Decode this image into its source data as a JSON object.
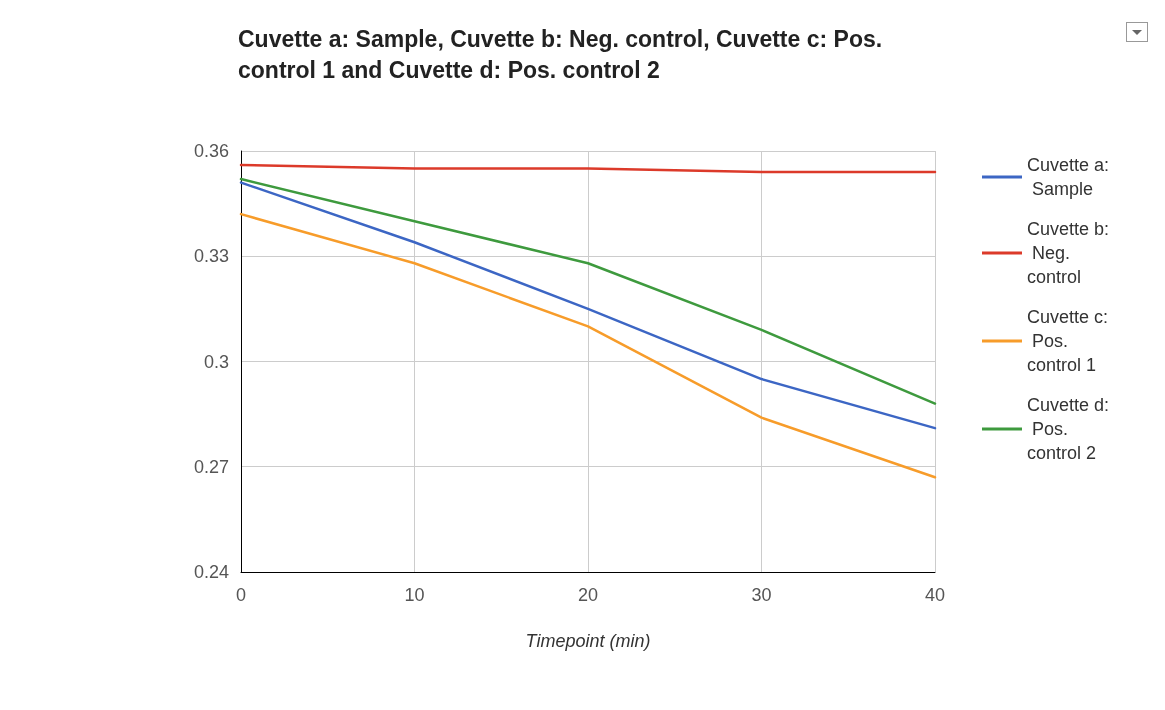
{
  "chart_data": {
    "type": "line",
    "title": "Cuvette a: Sample, Cuvette b: Neg. control, Cuvette c: Pos. control 1 and Cuvette d: Pos. control 2",
    "xlabel": "Timepoint (min)",
    "x": [
      0,
      10,
      20,
      30,
      40
    ],
    "series": [
      {
        "name": "Cuvette a: Sample",
        "color": "#3c66c4",
        "values": [
          0.351,
          0.334,
          0.315,
          0.295,
          0.281
        ]
      },
      {
        "name": "Cuvette b: Neg. control",
        "color": "#dc3a2a",
        "values": [
          0.356,
          0.355,
          0.355,
          0.354,
          0.354
        ]
      },
      {
        "name": "Cuvette c: Pos. control 1",
        "color": "#f79c2a",
        "values": [
          0.342,
          0.328,
          0.31,
          0.284,
          0.267
        ]
      },
      {
        "name": "Cuvette d: Pos. control 2",
        "color": "#3e9a3e",
        "values": [
          0.352,
          0.34,
          0.328,
          0.309,
          0.288
        ]
      }
    ],
    "xlim": [
      0,
      40
    ],
    "xticks": [
      0,
      10,
      20,
      30,
      40
    ],
    "ylim": [
      0.24,
      0.36
    ],
    "yticks": [
      0.24,
      0.27,
      0.3,
      0.33,
      0.36
    ],
    "grid": true,
    "legend": "right",
    "marker": "none",
    "line_style": "solid"
  }
}
